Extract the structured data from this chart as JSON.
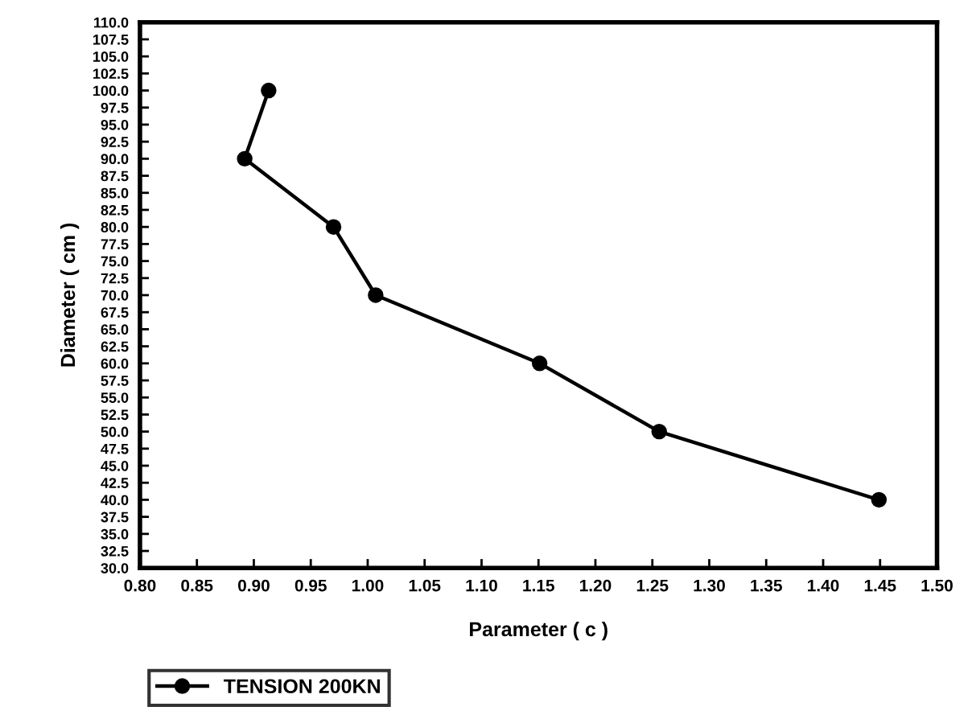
{
  "chart_data": {
    "type": "line",
    "xlabel": "Parameter ( c )",
    "ylabel": "Diameter ( cm )",
    "series": [
      {
        "name": "TENSION 200KN",
        "color": "#000000",
        "x": [
          0.913,
          0.892,
          0.97,
          1.007,
          1.151,
          1.256,
          1.449
        ],
        "values": [
          100,
          90,
          80,
          70,
          60,
          50,
          40
        ]
      }
    ],
    "xlim": [
      0.8,
      1.5
    ],
    "ylim": [
      30,
      110
    ],
    "xticks": [
      {
        "value": 0.8,
        "label": "0.80"
      },
      {
        "value": 0.85,
        "label": "0.85"
      },
      {
        "value": 0.9,
        "label": "0.90"
      },
      {
        "value": 0.95,
        "label": "0.95"
      },
      {
        "value": 1.0,
        "label": "1.00"
      },
      {
        "value": 1.05,
        "label": "1.05"
      },
      {
        "value": 1.1,
        "label": "1.10"
      },
      {
        "value": 1.15,
        "label": "1.15"
      },
      {
        "value": 1.2,
        "label": "1.20"
      },
      {
        "value": 1.25,
        "label": "1.25"
      },
      {
        "value": 1.3,
        "label": "1.30"
      },
      {
        "value": 1.35,
        "label": "1.35"
      },
      {
        "value": 1.4,
        "label": "1.40"
      },
      {
        "value": 1.45,
        "label": "1.45"
      },
      {
        "value": 1.5,
        "label": "1.50"
      }
    ],
    "yticks": [
      {
        "value": 30,
        "label": "30.0"
      },
      {
        "value": 32.5,
        "label": "32.5"
      },
      {
        "value": 35,
        "label": "35.0"
      },
      {
        "value": 37.5,
        "label": "37.5"
      },
      {
        "value": 40,
        "label": "40.0"
      },
      {
        "value": 42.5,
        "label": "42.5"
      },
      {
        "value": 45,
        "label": "45.0"
      },
      {
        "value": 47.5,
        "label": "47.5"
      },
      {
        "value": 50,
        "label": "50.0"
      },
      {
        "value": 52.5,
        "label": "52.5"
      },
      {
        "value": 55,
        "label": "55.0"
      },
      {
        "value": 57.5,
        "label": "57.5"
      },
      {
        "value": 60,
        "label": "60.0"
      },
      {
        "value": 62.5,
        "label": "62.5"
      },
      {
        "value": 65,
        "label": "65.0"
      },
      {
        "value": 67.5,
        "label": "67.5"
      },
      {
        "value": 70,
        "label": "70.0"
      },
      {
        "value": 72.5,
        "label": "72.5"
      },
      {
        "value": 75,
        "label": "75.0"
      },
      {
        "value": 77.5,
        "label": "77.5"
      },
      {
        "value": 80,
        "label": "80.0"
      },
      {
        "value": 82.5,
        "label": "82.5"
      },
      {
        "value": 85,
        "label": "85.0"
      },
      {
        "value": 87.5,
        "label": "87.5"
      },
      {
        "value": 90,
        "label": "90.0"
      },
      {
        "value": 92.5,
        "label": "92.5"
      },
      {
        "value": 95,
        "label": "95.0"
      },
      {
        "value": 97.5,
        "label": "97.5"
      },
      {
        "value": 100,
        "label": "100.0"
      },
      {
        "value": 102.5,
        "label": "102.5"
      },
      {
        "value": 105,
        "label": "105.0"
      },
      {
        "value": 107.5,
        "label": "107.5"
      },
      {
        "value": 110,
        "label": "110.0"
      }
    ],
    "grid": false,
    "legend": "bottom left",
    "marker": "circle",
    "line_style": "solid"
  }
}
